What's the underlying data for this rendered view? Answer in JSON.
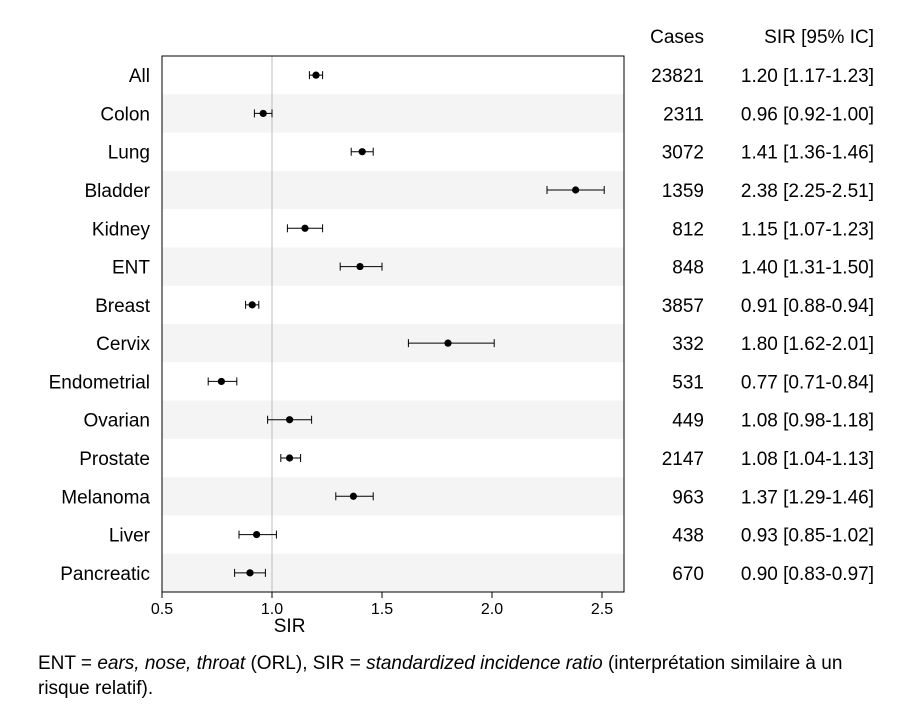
{
  "chart_data": {
    "type": "forest",
    "title": "",
    "xlabel": "SIR",
    "xlim": [
      0.5,
      2.6
    ],
    "xticks": [
      "0.5",
      "1.0",
      "1.5",
      "2.0",
      "2.5"
    ],
    "xtick_values": [
      0.5,
      1.0,
      1.5,
      2.0,
      2.5
    ],
    "reference_line": 1.0,
    "columns": {
      "cases_header": "Cases",
      "sir_header": "SIR [95% IC]"
    },
    "rows": [
      {
        "label": "All",
        "cases": "23821",
        "sir": 1.2,
        "lo": 1.17,
        "hi": 1.23,
        "text": "1.20 [1.17-1.23]"
      },
      {
        "label": "Colon",
        "cases": "2311",
        "sir": 0.96,
        "lo": 0.92,
        "hi": 1.0,
        "text": "0.96 [0.92-1.00]"
      },
      {
        "label": "Lung",
        "cases": "3072",
        "sir": 1.41,
        "lo": 1.36,
        "hi": 1.46,
        "text": "1.41 [1.36-1.46]"
      },
      {
        "label": "Bladder",
        "cases": "1359",
        "sir": 2.38,
        "lo": 2.25,
        "hi": 2.51,
        "text": "2.38 [2.25-2.51]"
      },
      {
        "label": "Kidney",
        "cases": "812",
        "sir": 1.15,
        "lo": 1.07,
        "hi": 1.23,
        "text": "1.15 [1.07-1.23]"
      },
      {
        "label": "ENT",
        "cases": "848",
        "sir": 1.4,
        "lo": 1.31,
        "hi": 1.5,
        "text": "1.40 [1.31-1.50]"
      },
      {
        "label": "Breast",
        "cases": "3857",
        "sir": 0.91,
        "lo": 0.88,
        "hi": 0.94,
        "text": "0.91 [0.88-0.94]"
      },
      {
        "label": "Cervix",
        "cases": "332",
        "sir": 1.8,
        "lo": 1.62,
        "hi": 2.01,
        "text": "1.80 [1.62-2.01]"
      },
      {
        "label": "Endometrial",
        "cases": "531",
        "sir": 0.77,
        "lo": 0.71,
        "hi": 0.84,
        "text": "0.77 [0.71-0.84]"
      },
      {
        "label": "Ovarian",
        "cases": "449",
        "sir": 1.08,
        "lo": 0.98,
        "hi": 1.18,
        "text": "1.08 [0.98-1.18]"
      },
      {
        "label": "Prostate",
        "cases": "2147",
        "sir": 1.08,
        "lo": 1.04,
        "hi": 1.13,
        "text": "1.08 [1.04-1.13]"
      },
      {
        "label": "Melanoma",
        "cases": "963",
        "sir": 1.37,
        "lo": 1.29,
        "hi": 1.46,
        "text": "1.37 [1.29-1.46]"
      },
      {
        "label": "Liver",
        "cases": "438",
        "sir": 0.93,
        "lo": 0.85,
        "hi": 1.02,
        "text": "0.93 [0.85-1.02]"
      },
      {
        "label": "Pancreatic",
        "cases": "670",
        "sir": 0.9,
        "lo": 0.83,
        "hi": 0.97,
        "text": "0.90 [0.83-0.97]"
      }
    ],
    "colors": {
      "stripe": "#f4f4f4",
      "reference": "#bdbdbd",
      "marker": "#000000"
    }
  },
  "footnote": {
    "p1": "ENT = ",
    "i1": "ears, nose, throat",
    "p2": " (ORL), SIR = ",
    "i2": "standardized incidence ratio",
    "p3": " (interprétation similaire à un risque relatif)."
  }
}
